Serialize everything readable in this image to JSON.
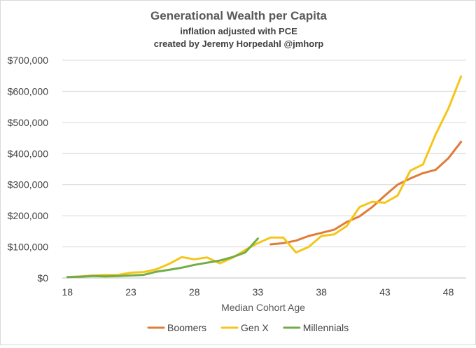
{
  "chart_data": {
    "type": "line",
    "title": "Generational Wealth per Capita",
    "subtitle_lines": [
      "inflation adjusted with PCE",
      "created by Jeremy Horpedahl @jmhorp"
    ],
    "xlabel": "Median Cohort Age",
    "ylabel": "",
    "xlim": [
      18,
      49
    ],
    "ylim": [
      0,
      700000
    ],
    "x_ticks": [
      18,
      23,
      28,
      33,
      38,
      43,
      48
    ],
    "y_ticks": [
      {
        "value": 0,
        "label": "$0"
      },
      {
        "value": 100000,
        "label": "$100,000"
      },
      {
        "value": 200000,
        "label": "$200,000"
      },
      {
        "value": 300000,
        "label": "$300,000"
      },
      {
        "value": 400000,
        "label": "$400,000"
      },
      {
        "value": 500000,
        "label": "$500,000"
      },
      {
        "value": 600000,
        "label": "$600,000"
      },
      {
        "value": 700000,
        "label": "$700,000"
      }
    ],
    "grid": true,
    "legend": "bottom",
    "series": [
      {
        "name": "Boomers",
        "color": "#e07b39",
        "points": [
          [
            34,
            108000
          ],
          [
            35,
            112000
          ],
          [
            36,
            120000
          ],
          [
            37,
            135000
          ],
          [
            38,
            145000
          ],
          [
            39,
            155000
          ],
          [
            40,
            180000
          ],
          [
            41,
            198000
          ],
          [
            42,
            228000
          ],
          [
            43,
            265000
          ],
          [
            44,
            300000
          ],
          [
            45,
            320000
          ],
          [
            46,
            337000
          ],
          [
            47,
            348000
          ],
          [
            48,
            385000
          ],
          [
            49,
            438000
          ]
        ]
      },
      {
        "name": "Gen X",
        "color": "#f5c518",
        "points": [
          [
            18,
            3000
          ],
          [
            19,
            5000
          ],
          [
            20,
            8000
          ],
          [
            21,
            10000
          ],
          [
            22,
            10000
          ],
          [
            23,
            17000
          ],
          [
            24,
            19000
          ],
          [
            25,
            28000
          ],
          [
            26,
            45000
          ],
          [
            27,
            67000
          ],
          [
            28,
            60000
          ],
          [
            29,
            66000
          ],
          [
            30,
            47000
          ],
          [
            31,
            65000
          ],
          [
            32,
            90000
          ],
          [
            33,
            112000
          ],
          [
            34,
            130000
          ],
          [
            35,
            130000
          ],
          [
            36,
            82000
          ],
          [
            37,
            100000
          ],
          [
            38,
            135000
          ],
          [
            39,
            140000
          ],
          [
            40,
            167000
          ],
          [
            41,
            228000
          ],
          [
            42,
            245000
          ],
          [
            43,
            242000
          ],
          [
            44,
            265000
          ],
          [
            45,
            345000
          ],
          [
            46,
            365000
          ],
          [
            47,
            462000
          ],
          [
            48,
            545000
          ],
          [
            49,
            648000
          ]
        ]
      },
      {
        "name": "Millennials",
        "color": "#70ad47",
        "points": [
          [
            18,
            3000
          ],
          [
            19,
            4000
          ],
          [
            20,
            6000
          ],
          [
            21,
            5000
          ],
          [
            22,
            6000
          ],
          [
            23,
            8000
          ],
          [
            24,
            10000
          ],
          [
            25,
            20000
          ],
          [
            26,
            26000
          ],
          [
            27,
            33000
          ],
          [
            28,
            42000
          ],
          [
            29,
            49000
          ],
          [
            30,
            56000
          ],
          [
            31,
            67000
          ],
          [
            32,
            82000
          ],
          [
            33,
            127000
          ]
        ]
      }
    ]
  }
}
